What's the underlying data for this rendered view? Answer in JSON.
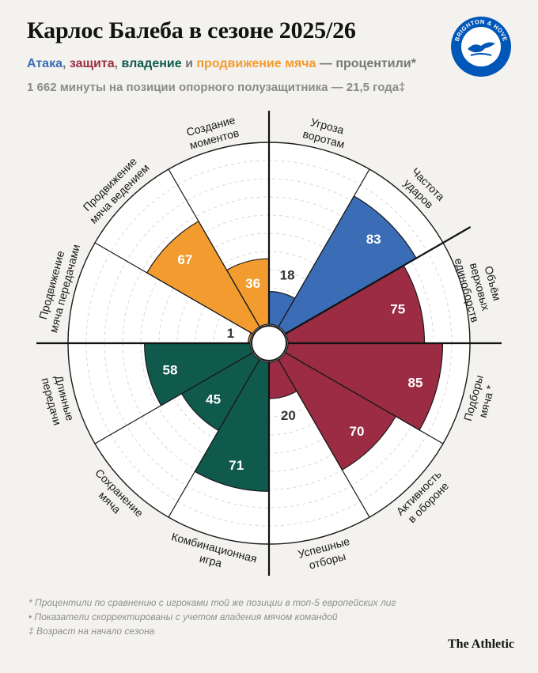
{
  "header": {
    "title": "Карлос Балеба в сезоне 2025/26",
    "subtitle": {
      "attack": "Атака",
      "sep1": ", ",
      "defense": "защита",
      "sep2": ", ",
      "possession": "владение",
      "and": " и ",
      "progression": "продвижение мяча",
      "tail": " — процентили*"
    },
    "info": "1 662 минуты на позиции опорного полузащитника — 21,5 года‡"
  },
  "badge": {
    "top_text": "BRIGHTON & HOVE",
    "bottom_text": "ALBION",
    "color": "#0057b8"
  },
  "colors": {
    "attack": "#3a6db5",
    "defense": "#9b2c43",
    "possession": "#0f5a4d",
    "progression": "#f29b2e"
  },
  "chart_data": {
    "type": "polar_bar",
    "scale_max": 100,
    "metrics": [
      {
        "label": [
          "Угроза",
          "воротам"
        ],
        "value": 18,
        "group": "attack"
      },
      {
        "label": [
          "Частота",
          "ударов"
        ],
        "value": 83,
        "group": "attack"
      },
      {
        "label": [
          "Объём",
          "верховых",
          "единоборств"
        ],
        "value": 75,
        "group": "defense"
      },
      {
        "label": [
          "Подборы",
          "мяча *"
        ],
        "value": 85,
        "group": "defense"
      },
      {
        "label": [
          "Активность",
          "в обороне"
        ],
        "value": 70,
        "group": "defense"
      },
      {
        "label": [
          "Успешные",
          "отборы"
        ],
        "value": 20,
        "group": "defense"
      },
      {
        "label": [
          "Комбинационная",
          "игра"
        ],
        "value": 71,
        "group": "possession"
      },
      {
        "label": [
          "Сохранение",
          "мяча"
        ],
        "value": 45,
        "group": "possession"
      },
      {
        "label": [
          "Длинные",
          "передачи"
        ],
        "value": 58,
        "group": "possession"
      },
      {
        "label": [
          "Продвижение",
          "мяча передачами"
        ],
        "value": 1,
        "group": "progression"
      },
      {
        "label": [
          "Продвижение",
          "мяча ведением"
        ],
        "value": 67,
        "group": "progression"
      },
      {
        "label": [
          "Создание",
          "моментов"
        ],
        "value": 36,
        "group": "progression"
      }
    ]
  },
  "footnotes": [
    "* Процентили по сравнению с игроками той же позиции в топ-5 европейских лиг",
    "• Показатели скорректированы с учетом владения мячом командой",
    "‡ Возраст на начало сезона"
  ],
  "brand": "The Athletic"
}
